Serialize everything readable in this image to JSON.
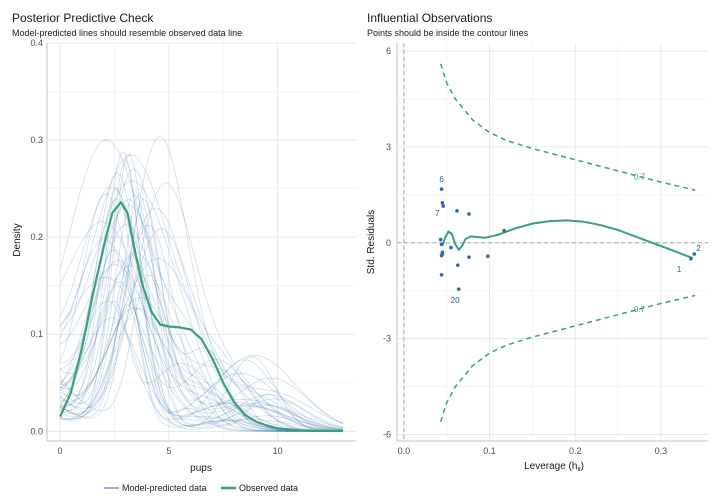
{
  "chart_data": [
    {
      "type": "line",
      "title": "Posterior Predictive Check",
      "subtitle": "Model-predicted lines should resemble observed data line",
      "xlabel": "pups",
      "ylabel": "Density",
      "xlim": [
        -0.6,
        13.6
      ],
      "ylim": [
        -0.01,
        0.4
      ],
      "x_ticks": [
        0,
        5,
        10
      ],
      "x_tick_labels": [
        "0",
        "5",
        "10"
      ],
      "y_ticks": [
        0.0,
        0.1,
        0.2,
        0.3,
        0.4
      ],
      "y_tick_labels": [
        "0.0",
        "0.1",
        "0.2",
        "0.3",
        "0.4"
      ],
      "grid": true,
      "legend": {
        "placement": "bottom",
        "entries": [
          "Model-predicted data",
          "Observed data"
        ]
      },
      "colors": {
        "predicted": "#2f6aa8",
        "observed": "#3aa07a"
      },
      "series": [
        {
          "name": "Observed data",
          "x": [
            0,
            0.5,
            1,
            1.5,
            2,
            2.4,
            2.8,
            3.1,
            3.4,
            3.8,
            4.2,
            4.6,
            5,
            5.5,
            6,
            6.5,
            7,
            7.5,
            8,
            8.5,
            9,
            9.5,
            10,
            11,
            12,
            13
          ],
          "y": [
            0.015,
            0.04,
            0.085,
            0.14,
            0.19,
            0.225,
            0.236,
            0.225,
            0.19,
            0.15,
            0.123,
            0.11,
            0.108,
            0.107,
            0.105,
            0.095,
            0.075,
            0.05,
            0.03,
            0.017,
            0.01,
            0.006,
            0.003,
            0.001,
            0.0005,
            0.0003
          ]
        }
      ]
    },
    {
      "type": "scatter",
      "title": "Influential Observations",
      "subtitle": "Points should be inside the contour lines",
      "xlabel": "Leverage (h",
      "xlabel_sub": "ii",
      "xlabel_close": ")",
      "ylabel": "Std. Residuals",
      "xlim": [
        -0.008,
        0.355
      ],
      "ylim": [
        -6.2,
        6.25
      ],
      "x_ticks": [
        0.0,
        0.1,
        0.2,
        0.3
      ],
      "x_tick_labels": [
        "0.0",
        "0.1",
        "0.2",
        "0.3"
      ],
      "y_ticks": [
        -6,
        -3,
        0,
        3,
        6
      ],
      "y_tick_labels": [
        "-6",
        "-3",
        "0",
        "3",
        "6"
      ],
      "grid": true,
      "colors": {
        "points": "#2f6aa8",
        "fit": "#3aa07a",
        "contour": "#3aa07a",
        "reference": "#a6a6a6"
      },
      "points": [
        {
          "x": 0.044,
          "y": 1.68,
          "label": "6"
        },
        {
          "x": 0.045,
          "y": 1.25,
          "label": ""
        },
        {
          "x": 0.046,
          "y": 1.15,
          "label": "7"
        },
        {
          "x": 0.043,
          "y": 0.1,
          "label": ""
        },
        {
          "x": 0.044,
          "y": -0.05,
          "label": ""
        },
        {
          "x": 0.045,
          "y": -0.3,
          "label": ""
        },
        {
          "x": 0.045,
          "y": -0.35,
          "label": ""
        },
        {
          "x": 0.044,
          "y": -0.4,
          "label": ""
        },
        {
          "x": 0.044,
          "y": -1.0,
          "label": ""
        },
        {
          "x": 0.055,
          "y": -0.15,
          "label": ""
        },
        {
          "x": 0.062,
          "y": 1.0,
          "label": ""
        },
        {
          "x": 0.063,
          "y": -0.7,
          "label": ""
        },
        {
          "x": 0.064,
          "y": -1.45,
          "label": "20"
        },
        {
          "x": 0.076,
          "y": 0.9,
          "label": ""
        },
        {
          "x": 0.076,
          "y": -0.45,
          "label": ""
        },
        {
          "x": 0.098,
          "y": -0.42,
          "label": ""
        },
        {
          "x": 0.117,
          "y": 0.38,
          "label": ""
        },
        {
          "x": 0.335,
          "y": -0.5,
          "label": "1"
        },
        {
          "x": 0.339,
          "y": -0.35,
          "label": "2"
        }
      ],
      "fit_line": {
        "x": [
          0.045,
          0.048,
          0.052,
          0.056,
          0.06,
          0.064,
          0.068,
          0.072,
          0.078,
          0.085,
          0.095,
          0.11,
          0.13,
          0.15,
          0.17,
          0.19,
          0.21,
          0.23,
          0.25,
          0.27,
          0.29,
          0.31,
          0.337
        ],
        "y": [
          -0.1,
          0.15,
          0.35,
          0.28,
          -0.05,
          -0.22,
          -0.1,
          0.12,
          0.2,
          0.18,
          0.16,
          0.25,
          0.45,
          0.6,
          0.68,
          0.7,
          0.66,
          0.55,
          0.4,
          0.2,
          0.0,
          -0.2,
          -0.48
        ]
      },
      "contours": [
        {
          "label": "0.7",
          "x": [
            0.043,
            0.05,
            0.06,
            0.08,
            0.1,
            0.12,
            0.15,
            0.2,
            0.25,
            0.3,
            0.34
          ],
          "y": [
            5.6,
            5.0,
            4.5,
            3.85,
            3.45,
            3.2,
            2.95,
            2.6,
            2.25,
            1.9,
            1.65
          ]
        },
        {
          "label": "0.7",
          "x": [
            0.043,
            0.05,
            0.06,
            0.08,
            0.1,
            0.12,
            0.15,
            0.2,
            0.25,
            0.3,
            0.34
          ],
          "y": [
            -5.6,
            -5.0,
            -4.5,
            -3.85,
            -3.45,
            -3.2,
            -2.95,
            -2.6,
            -2.25,
            -1.9,
            -1.65
          ]
        }
      ],
      "contour_label_x": 0.275
    }
  ]
}
